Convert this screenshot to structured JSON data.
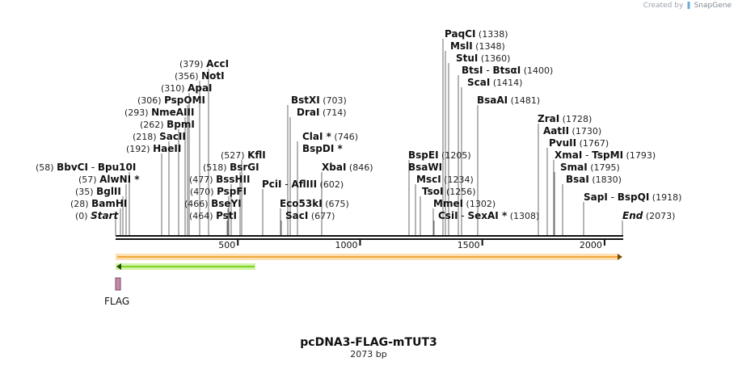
{
  "credit": {
    "prefix": "Created by",
    "brand": "SnapGene"
  },
  "map": {
    "name": "pcDNA3-FLAG-mTUT3",
    "length_label": "2073 bp",
    "length": 2073,
    "ticks": [
      "500",
      "1000",
      "1500",
      "2000"
    ],
    "feature_label": "FLAG",
    "colors": {
      "backbone": "#111111",
      "orange_feature": "#f2a73a",
      "green_feature": "#7ed321",
      "flag_box": "#c48aa8"
    }
  },
  "sites": [
    {
      "n": "Start",
      "p": "(0)",
      "italic": true
    },
    {
      "n": "BamHI",
      "p": "(28)"
    },
    {
      "n": "BglII",
      "p": "(35)"
    },
    {
      "n": "AlwNI *",
      "p": "(57)"
    },
    {
      "n": "BbvCI",
      "n2": "Bpu10I",
      "p": "(58)"
    },
    {
      "n": "HaeII",
      "p": "(192)"
    },
    {
      "n": "SacII",
      "p": "(218)"
    },
    {
      "n": "BpmI",
      "p": "(262)"
    },
    {
      "n": "NmeAIII",
      "p": "(293)"
    },
    {
      "n": "PspOMI",
      "p": "(306)"
    },
    {
      "n": "ApaI",
      "p": "(310)"
    },
    {
      "n": "NotI",
      "p": "(356)"
    },
    {
      "n": "AccI",
      "p": "(379)"
    },
    {
      "n": "PstI",
      "p": "(464)"
    },
    {
      "n": "BseYI",
      "p": "(466)"
    },
    {
      "n": "PspFI",
      "p": "(470)"
    },
    {
      "n": "BssHII",
      "p": "(477)"
    },
    {
      "n": "BsrGI",
      "p": "(518)"
    },
    {
      "n": "KflI",
      "p": "(527)"
    },
    {
      "n": "PciI",
      "n2": "AflIII",
      "p": "(602)"
    },
    {
      "n": "Eco53kI",
      "p": "(675)"
    },
    {
      "n": "SacI",
      "p": "(677)"
    },
    {
      "n": "BstXI",
      "p": "(703)"
    },
    {
      "n": "DraI",
      "p": "(714)"
    },
    {
      "n": "ClaI *",
      "p": "(746)"
    },
    {
      "n": "BspDI *",
      "p": ""
    },
    {
      "n": "XbaI",
      "p": "(846)"
    },
    {
      "n": "BspEI",
      "p": "(1205)"
    },
    {
      "n": "BsaWI",
      "p": ""
    },
    {
      "n": "MscI",
      "p": "(1234)"
    },
    {
      "n": "TsoI",
      "p": "(1256)"
    },
    {
      "n": "MmeI",
      "p": "(1302)"
    },
    {
      "n": "CsiI",
      "n2": "SexAI *",
      "p": "(1308)"
    },
    {
      "n": "PaqCI",
      "p": "(1338)"
    },
    {
      "n": "MslI",
      "p": "(1348)"
    },
    {
      "n": "StuI",
      "p": "(1360)"
    },
    {
      "n": "BtsI",
      "n2": "BtsαI",
      "p": "(1400)"
    },
    {
      "n": "ScaI",
      "p": "(1414)"
    },
    {
      "n": "BsaAI",
      "p": "(1481)"
    },
    {
      "n": "ZraI",
      "p": "(1728)"
    },
    {
      "n": "AatII",
      "p": "(1730)"
    },
    {
      "n": "PvuII",
      "p": "(1767)"
    },
    {
      "n": "XmaI",
      "n2": "TspMI",
      "p": "(1793)"
    },
    {
      "n": "SmaI",
      "p": "(1795)"
    },
    {
      "n": "BsaI",
      "p": "(1830)"
    },
    {
      "n": "SapI",
      "n2": "BspQI",
      "p": "(1918)"
    },
    {
      "n": "End",
      "p": "(2073)",
      "italic": true
    }
  ]
}
